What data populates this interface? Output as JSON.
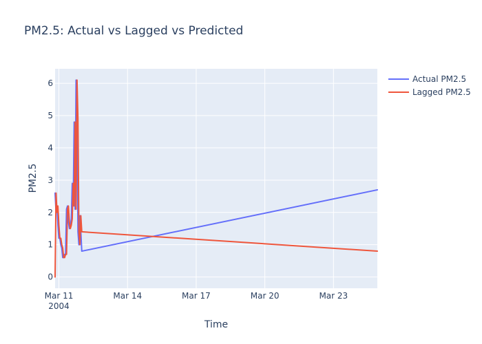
{
  "chart_data": {
    "type": "line",
    "title": "PM2.5: Actual vs Lagged vs Predicted",
    "xlabel": "Time",
    "ylabel": "PM2.5",
    "x_axis_type": "date",
    "xlim": [
      "2004-03-10 20:00",
      "2004-03-24 22:00"
    ],
    "ylim": [
      -0.35,
      6.45
    ],
    "x_ticks": [
      {
        "value": "2004-03-11 00:00",
        "label": "Mar 11",
        "sublabel": "2004"
      },
      {
        "value": "2004-03-14 00:00",
        "label": "Mar 14",
        "sublabel": ""
      },
      {
        "value": "2004-03-17 00:00",
        "label": "Mar 17",
        "sublabel": ""
      },
      {
        "value": "2004-03-20 00:00",
        "label": "Mar 20",
        "sublabel": ""
      },
      {
        "value": "2004-03-23 00:00",
        "label": "Mar 23",
        "sublabel": ""
      }
    ],
    "y_ticks": [
      0,
      1,
      2,
      3,
      4,
      5,
      6
    ],
    "grid": true,
    "legend_position": "top-right",
    "plot_background": "#e5ecf6",
    "series": [
      {
        "name": "Actual PM2.5",
        "color": "#636efa",
        "points": [
          [
            "2004-03-10 20:00",
            2.6
          ],
          [
            "2004-03-10 21:00",
            2.0
          ],
          [
            "2004-03-10 22:00",
            2.2
          ],
          [
            "2004-03-10 23:00",
            1.6
          ],
          [
            "2004-03-11 00:00",
            1.2
          ],
          [
            "2004-03-11 01:00",
            1.2
          ],
          [
            "2004-03-11 02:00",
            1.0
          ],
          [
            "2004-03-11 03:00",
            0.9
          ],
          [
            "2004-03-11 04:00",
            0.6
          ],
          [
            "2004-03-11 05:00",
            0.6
          ],
          [
            "2004-03-11 06:00",
            0.7
          ],
          [
            "2004-03-11 07:00",
            0.7
          ],
          [
            "2004-03-11 08:00",
            2.1
          ],
          [
            "2004-03-11 09:00",
            2.2
          ],
          [
            "2004-03-11 10:00",
            1.7
          ],
          [
            "2004-03-11 11:00",
            1.5
          ],
          [
            "2004-03-11 12:00",
            1.6
          ],
          [
            "2004-03-11 13:00",
            1.8
          ],
          [
            "2004-03-11 14:00",
            2.9
          ],
          [
            "2004-03-11 15:00",
            2.2
          ],
          [
            "2004-03-11 16:00",
            4.8
          ],
          [
            "2004-03-11 17:00",
            2.1
          ],
          [
            "2004-03-11 18:00",
            6.1
          ],
          [
            "2004-03-11 19:00",
            4.9
          ],
          [
            "2004-03-11 20:00",
            1.4
          ],
          [
            "2004-03-11 21:00",
            1.0
          ],
          [
            "2004-03-11 22:00",
            1.9
          ],
          [
            "2004-03-11 23:00",
            1.4
          ],
          [
            "2004-03-12 00:00",
            0.8
          ],
          [
            "2004-03-24 22:00",
            2.7
          ]
        ]
      },
      {
        "name": "Lagged PM2.5",
        "color": "#ef553b",
        "points": [
          [
            "2004-03-10 20:00",
            0.0
          ],
          [
            "2004-03-10 21:00",
            2.6
          ],
          [
            "2004-03-10 22:00",
            2.0
          ],
          [
            "2004-03-10 23:00",
            2.2
          ],
          [
            "2004-03-11 00:00",
            1.6
          ],
          [
            "2004-03-11 01:00",
            1.2
          ],
          [
            "2004-03-11 02:00",
            1.2
          ],
          [
            "2004-03-11 03:00",
            1.0
          ],
          [
            "2004-03-11 04:00",
            0.9
          ],
          [
            "2004-03-11 05:00",
            0.6
          ],
          [
            "2004-03-11 06:00",
            0.6
          ],
          [
            "2004-03-11 07:00",
            0.7
          ],
          [
            "2004-03-11 08:00",
            0.7
          ],
          [
            "2004-03-11 09:00",
            2.1
          ],
          [
            "2004-03-11 10:00",
            2.2
          ],
          [
            "2004-03-11 11:00",
            1.7
          ],
          [
            "2004-03-11 12:00",
            1.5
          ],
          [
            "2004-03-11 13:00",
            1.6
          ],
          [
            "2004-03-11 14:00",
            1.8
          ],
          [
            "2004-03-11 15:00",
            2.9
          ],
          [
            "2004-03-11 16:00",
            2.2
          ],
          [
            "2004-03-11 17:00",
            4.8
          ],
          [
            "2004-03-11 18:00",
            2.1
          ],
          [
            "2004-03-11 19:00",
            6.1
          ],
          [
            "2004-03-11 20:00",
            4.9
          ],
          [
            "2004-03-11 21:00",
            1.4
          ],
          [
            "2004-03-11 22:00",
            1.0
          ],
          [
            "2004-03-11 23:00",
            1.9
          ],
          [
            "2004-03-12 00:00",
            1.4
          ],
          [
            "2004-03-24 22:00",
            0.8
          ]
        ]
      }
    ]
  }
}
